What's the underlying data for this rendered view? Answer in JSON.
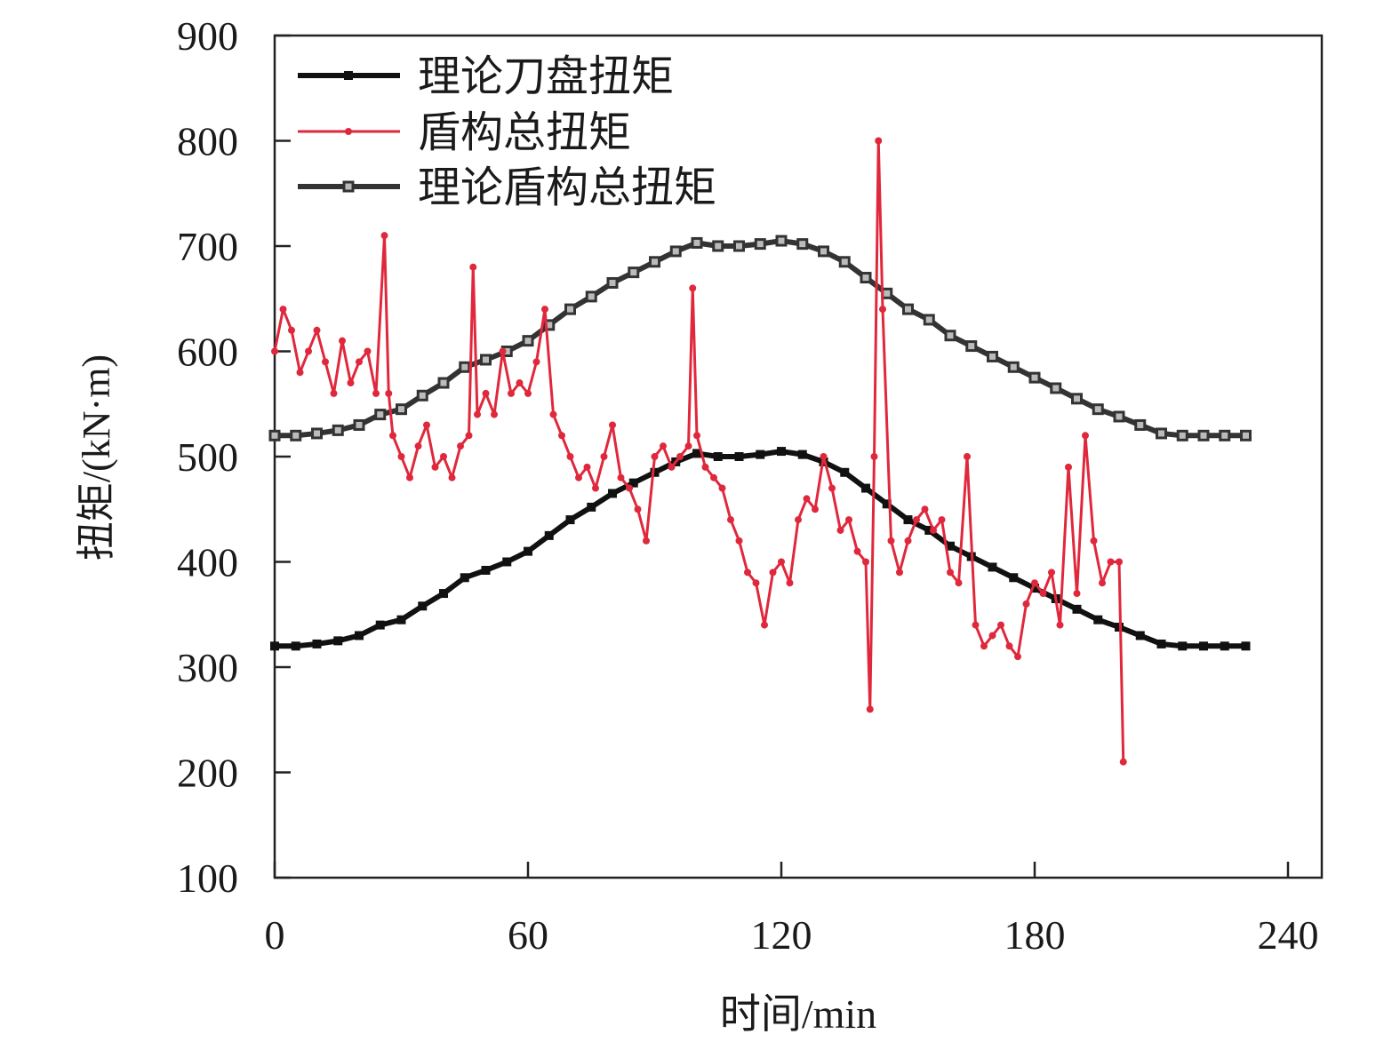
{
  "chart_data": {
    "type": "line",
    "title": "",
    "xlabel": "时间/min",
    "ylabel": "扭矩/(kN·m)",
    "xlim": [
      0,
      248
    ],
    "ylim": [
      100,
      900
    ],
    "xticks": [
      0,
      60,
      120,
      180,
      240
    ],
    "yticks": [
      100,
      200,
      300,
      400,
      500,
      600,
      700,
      800,
      900
    ],
    "grid": false,
    "legend_position": "top-left",
    "series": [
      {
        "name": "理论刀盘扭矩",
        "color": "#111111",
        "marker": "filled-square",
        "x": [
          0,
          5,
          10,
          15,
          20,
          25,
          30,
          35,
          40,
          45,
          50,
          55,
          60,
          65,
          70,
          75,
          80,
          85,
          90,
          95,
          100,
          105,
          110,
          115,
          120,
          125,
          130,
          135,
          140,
          145,
          150,
          155,
          160,
          165,
          170,
          175,
          180,
          185,
          190,
          195,
          200,
          205,
          210,
          215,
          220,
          225,
          230
        ],
        "y": [
          320,
          320,
          322,
          325,
          330,
          340,
          345,
          358,
          370,
          385,
          392,
          400,
          410,
          425,
          440,
          452,
          465,
          475,
          485,
          495,
          503,
          500,
          500,
          502,
          505,
          502,
          495,
          485,
          470,
          455,
          440,
          430,
          415,
          405,
          395,
          385,
          375,
          365,
          355,
          345,
          338,
          330,
          322,
          320,
          320,
          320,
          320
        ]
      },
      {
        "name": "盾构总扭矩",
        "color": "#e0283c",
        "marker": "small-star",
        "x": [
          0,
          2,
          4,
          6,
          8,
          10,
          12,
          14,
          16,
          18,
          20,
          22,
          24,
          26,
          27,
          28,
          30,
          32,
          34,
          36,
          38,
          40,
          42,
          44,
          46,
          47,
          48,
          50,
          52,
          54,
          56,
          58,
          60,
          62,
          64,
          66,
          68,
          70,
          72,
          74,
          76,
          78,
          80,
          82,
          84,
          86,
          88,
          90,
          92,
          94,
          96,
          98,
          99,
          100,
          102,
          104,
          106,
          108,
          110,
          112,
          114,
          116,
          118,
          120,
          122,
          124,
          126,
          128,
          130,
          132,
          134,
          136,
          138,
          140,
          141,
          142,
          143,
          144,
          146,
          148,
          150,
          152,
          154,
          156,
          158,
          160,
          162,
          164,
          166,
          168,
          170,
          172,
          174,
          176,
          178,
          180,
          182,
          184,
          186,
          188,
          190,
          192,
          194,
          196,
          198,
          200,
          201
        ],
        "y": [
          600,
          640,
          620,
          580,
          600,
          620,
          590,
          560,
          610,
          570,
          590,
          600,
          560,
          710,
          560,
          520,
          500,
          480,
          510,
          530,
          490,
          500,
          480,
          510,
          520,
          680,
          540,
          560,
          540,
          600,
          560,
          570,
          560,
          590,
          640,
          540,
          520,
          500,
          480,
          490,
          470,
          500,
          530,
          480,
          470,
          450,
          420,
          500,
          510,
          490,
          500,
          510,
          660,
          520,
          490,
          480,
          470,
          440,
          420,
          390,
          380,
          340,
          390,
          400,
          380,
          440,
          460,
          450,
          500,
          470,
          430,
          440,
          410,
          400,
          260,
          500,
          800,
          640,
          420,
          390,
          420,
          440,
          450,
          430,
          440,
          390,
          380,
          500,
          340,
          320,
          330,
          340,
          320,
          310,
          360,
          380,
          370,
          390,
          340,
          490,
          370,
          520,
          420,
          380,
          400,
          400,
          210
        ]
      },
      {
        "name": "理论盾构总扭矩",
        "color": "#333333",
        "marker": "open-square",
        "x": [
          0,
          5,
          10,
          15,
          20,
          25,
          30,
          35,
          40,
          45,
          50,
          55,
          60,
          65,
          70,
          75,
          80,
          85,
          90,
          95,
          100,
          105,
          110,
          115,
          120,
          125,
          130,
          135,
          140,
          145,
          150,
          155,
          160,
          165,
          170,
          175,
          180,
          185,
          190,
          195,
          200,
          205,
          210,
          215,
          220,
          225,
          230
        ],
        "y": [
          520,
          520,
          522,
          525,
          530,
          540,
          545,
          558,
          570,
          585,
          592,
          600,
          610,
          625,
          640,
          652,
          665,
          675,
          685,
          695,
          703,
          700,
          700,
          702,
          705,
          702,
          695,
          685,
          670,
          655,
          640,
          630,
          615,
          605,
          595,
          585,
          575,
          565,
          555,
          545,
          538,
          530,
          522,
          520,
          520,
          520,
          520
        ]
      }
    ]
  }
}
